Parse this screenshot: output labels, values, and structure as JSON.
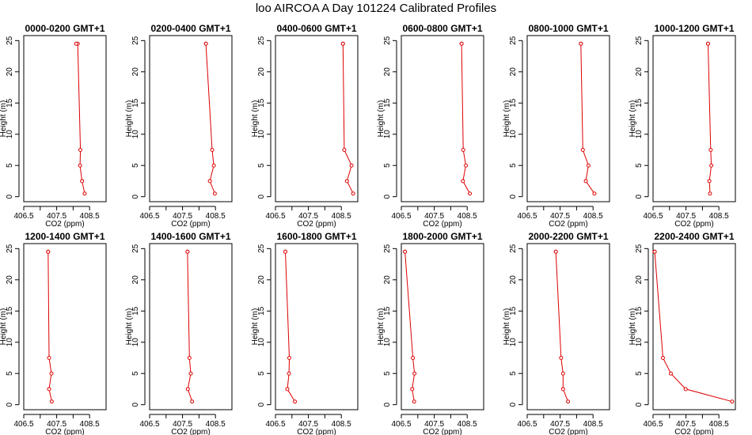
{
  "figure": {
    "title": "loo AIRCOA A  Day 101224  Calibrated Profiles"
  },
  "colors": {
    "series": "#dd0000",
    "frame": "#000000"
  },
  "chart_data": [
    {
      "type": "line",
      "title": "0000-0200 GMT+1",
      "xlabel": "CO2 (ppm)",
      "ylabel": "Height (m)",
      "xlim": [
        406.5,
        409.0
      ],
      "ylim": [
        -0.8,
        25.8
      ],
      "xticks": [
        406.5,
        407.5,
        408.5
      ],
      "xticks_minor": [
        407.0,
        408.0
      ],
      "yticks": [
        0,
        5,
        10,
        15,
        20,
        25
      ],
      "x": [
        408.35,
        408.27,
        408.21,
        408.22,
        408.14,
        408.09
      ],
      "y": [
        0.5,
        2.5,
        5.0,
        7.5,
        24.5,
        24.5
      ]
    },
    {
      "type": "line",
      "title": "0200-0400 GMT+1",
      "xlabel": "CO2 (ppm)",
      "ylabel": "Height (m)",
      "xlim": [
        406.5,
        409.0
      ],
      "ylim": [
        -0.8,
        25.8
      ],
      "xticks": [
        406.5,
        407.5,
        408.5
      ],
      "xticks_minor": [
        407.0,
        408.0
      ],
      "yticks": [
        0,
        5,
        10,
        15,
        20,
        25
      ],
      "x": [
        408.48,
        408.33,
        408.45,
        408.4,
        408.21,
        408.21
      ],
      "y": [
        0.5,
        2.5,
        5.0,
        7.5,
        24.5,
        24.5
      ]
    },
    {
      "type": "line",
      "title": "0400-0600 GMT+1",
      "xlabel": "CO2 (ppm)",
      "ylabel": "Height (m)",
      "xlim": [
        406.5,
        409.0
      ],
      "ylim": [
        -0.8,
        25.8
      ],
      "xticks": [
        406.5,
        407.5,
        408.5
      ],
      "xticks_minor": [
        407.0,
        408.0
      ],
      "yticks": [
        0,
        5,
        10,
        15,
        20,
        25
      ],
      "x": [
        408.86,
        408.67,
        408.81,
        408.59,
        408.55,
        408.55
      ],
      "y": [
        0.5,
        2.5,
        5.0,
        7.5,
        24.5,
        24.5
      ]
    },
    {
      "type": "line",
      "title": "0600-0800 GMT+1",
      "xlabel": "CO2 (ppm)",
      "ylabel": "Height (m)",
      "xlim": [
        406.5,
        409.0
      ],
      "ylim": [
        -0.8,
        25.8
      ],
      "xticks": [
        406.5,
        407.5,
        408.5
      ],
      "xticks_minor": [
        407.0,
        408.0
      ],
      "yticks": [
        0,
        5,
        10,
        15,
        20,
        25
      ],
      "x": [
        408.58,
        408.37,
        408.46,
        408.38,
        408.33,
        408.33
      ],
      "y": [
        0.5,
        2.5,
        5.0,
        7.5,
        24.5,
        24.5
      ]
    },
    {
      "type": "line",
      "title": "0800-1000 GMT+1",
      "xlabel": "CO2 (ppm)",
      "ylabel": "Height (m)",
      "xlim": [
        406.5,
        409.0
      ],
      "ylim": [
        -0.8,
        25.8
      ],
      "xticks": [
        406.5,
        407.5,
        408.5
      ],
      "xticks_minor": [
        407.0,
        408.0
      ],
      "yticks": [
        0,
        5,
        10,
        15,
        20,
        25
      ],
      "x": [
        408.54,
        408.28,
        408.36,
        408.19,
        408.13,
        408.13
      ],
      "y": [
        0.5,
        2.5,
        5.0,
        7.5,
        24.5,
        24.5
      ]
    },
    {
      "type": "line",
      "title": "1000-1200 GMT+1",
      "xlabel": "CO2 (ppm)",
      "ylabel": "Height (m)",
      "xlim": [
        406.5,
        409.0
      ],
      "ylim": [
        -0.8,
        25.8
      ],
      "xticks": [
        406.5,
        407.5,
        408.5
      ],
      "xticks_minor": [
        407.0,
        408.0
      ],
      "yticks": [
        0,
        5,
        10,
        15,
        20,
        25
      ],
      "x": [
        408.23,
        408.21,
        408.27,
        408.25,
        408.17,
        408.17
      ],
      "y": [
        0.5,
        2.5,
        5.0,
        7.5,
        24.5,
        24.5
      ]
    },
    {
      "type": "line",
      "title": "1200-1400 GMT+1",
      "xlabel": "CO2 (ppm)",
      "ylabel": "Height (m)",
      "xlim": [
        406.5,
        409.0
      ],
      "ylim": [
        -0.8,
        25.8
      ],
      "xticks": [
        406.5,
        407.5,
        408.5
      ],
      "xticks_minor": [
        407.0,
        408.0
      ],
      "yticks": [
        0,
        5,
        10,
        15,
        20,
        25
      ],
      "x": [
        407.35,
        407.27,
        407.34,
        407.27,
        407.24,
        407.24
      ],
      "y": [
        0.5,
        2.5,
        5.0,
        7.5,
        24.5,
        24.5
      ]
    },
    {
      "type": "line",
      "title": "1400-1600 GMT+1",
      "xlabel": "CO2 (ppm)",
      "ylabel": "Height (m)",
      "xlim": [
        406.5,
        409.0
      ],
      "ylim": [
        -0.8,
        25.8
      ],
      "xticks": [
        406.5,
        407.5,
        408.5
      ],
      "xticks_minor": [
        407.0,
        408.0
      ],
      "yticks": [
        0,
        5,
        10,
        15,
        20,
        25
      ],
      "x": [
        407.79,
        407.66,
        407.75,
        407.71,
        407.65,
        407.65
      ],
      "y": [
        0.5,
        2.5,
        5.0,
        7.5,
        24.5,
        24.5
      ]
    },
    {
      "type": "line",
      "title": "1600-1800 GMT+1",
      "xlabel": "CO2 (ppm)",
      "ylabel": "Height (m)",
      "xlim": [
        406.5,
        409.0
      ],
      "ylim": [
        -0.8,
        25.8
      ],
      "xticks": [
        406.5,
        407.5,
        408.5
      ],
      "xticks_minor": [
        407.0,
        408.0
      ],
      "yticks": [
        0,
        5,
        10,
        15,
        20,
        25
      ],
      "x": [
        407.09,
        406.86,
        406.91,
        406.92,
        406.8,
        406.8
      ],
      "y": [
        0.5,
        2.5,
        5.0,
        7.5,
        24.5,
        24.5
      ]
    },
    {
      "type": "line",
      "title": "1800-2000 GMT+1",
      "xlabel": "CO2 (ppm)",
      "ylabel": "Height (m)",
      "xlim": [
        406.5,
        409.0
      ],
      "ylim": [
        -0.8,
        25.8
      ],
      "xticks": [
        406.5,
        407.5,
        408.5
      ],
      "xticks_minor": [
        407.0,
        408.0
      ],
      "yticks": [
        0,
        5,
        10,
        15,
        20,
        25
      ],
      "x": [
        406.89,
        406.83,
        406.9,
        406.85,
        406.61,
        406.61
      ],
      "y": [
        0.5,
        2.5,
        5.0,
        7.5,
        24.5,
        24.5
      ]
    },
    {
      "type": "line",
      "title": "2000-2200 GMT+1",
      "xlabel": "CO2 (ppm)",
      "ylabel": "Height (m)",
      "xlim": [
        406.5,
        409.0
      ],
      "ylim": [
        -0.8,
        25.8
      ],
      "xticks": [
        406.5,
        407.5,
        408.5
      ],
      "xticks_minor": [
        407.0,
        408.0
      ],
      "yticks": [
        0,
        5,
        10,
        15,
        20,
        25
      ],
      "x": [
        407.74,
        407.59,
        407.59,
        407.53,
        407.37,
        407.37
      ],
      "y": [
        0.5,
        2.5,
        5.0,
        7.5,
        24.5,
        24.5
      ]
    },
    {
      "type": "line",
      "title": "2200-2400 GMT+1",
      "xlabel": "CO2 (ppm)",
      "ylabel": "Height (m)",
      "xlim": [
        406.5,
        409.0
      ],
      "ylim": [
        -0.8,
        25.8
      ],
      "xticks": [
        406.5,
        407.5,
        408.5
      ],
      "xticks_minor": [
        407.0,
        408.0
      ],
      "yticks": [
        0,
        5,
        10,
        15,
        20,
        25
      ],
      "x": [
        408.9,
        407.49,
        407.04,
        406.8,
        406.55,
        406.55
      ],
      "y": [
        0.5,
        2.5,
        5.0,
        7.5,
        24.5,
        24.5
      ]
    }
  ]
}
